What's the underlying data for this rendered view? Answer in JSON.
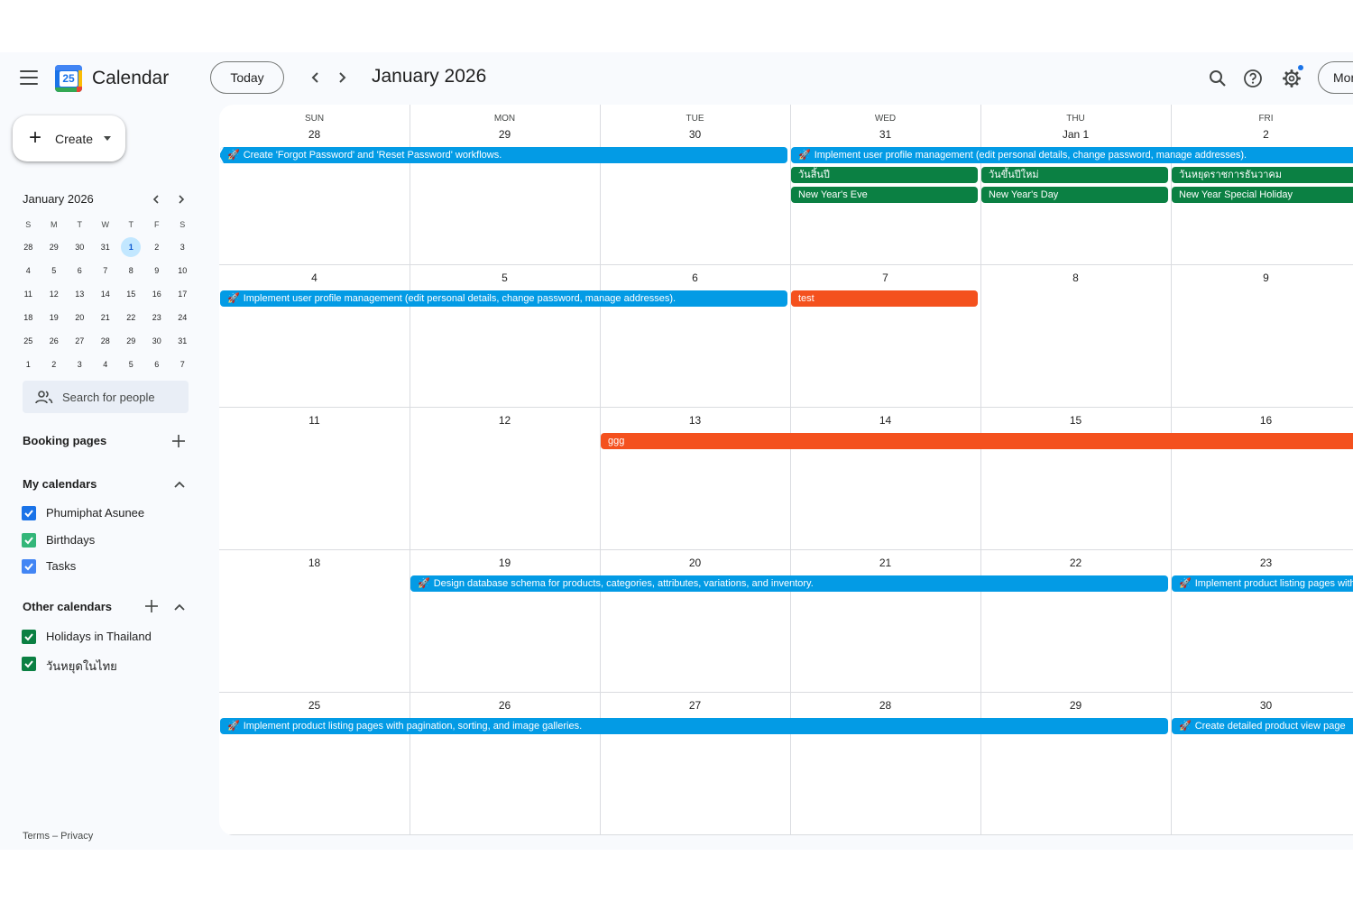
{
  "header": {
    "app_title": "Calendar",
    "logo_day": "25",
    "today_label": "Today",
    "month_title": "January 2026",
    "view_label": "Month",
    "icons": [
      "menu-icon",
      "chevron-left-icon",
      "chevron-right-icon",
      "search-icon",
      "help-icon",
      "settings-icon"
    ]
  },
  "sidebar": {
    "create_label": "Create",
    "mini_calendar": {
      "title": "January 2026",
      "weekdays": [
        "S",
        "M",
        "T",
        "W",
        "T",
        "F",
        "S"
      ],
      "weeks": [
        [
          "28",
          "29",
          "30",
          "31",
          "1",
          "2",
          "3"
        ],
        [
          "4",
          "5",
          "6",
          "7",
          "8",
          "9",
          "10"
        ],
        [
          "11",
          "12",
          "13",
          "14",
          "15",
          "16",
          "17"
        ],
        [
          "18",
          "19",
          "20",
          "21",
          "22",
          "23",
          "24"
        ],
        [
          "25",
          "26",
          "27",
          "28",
          "29",
          "30",
          "31"
        ],
        [
          "1",
          "2",
          "3",
          "4",
          "5",
          "6",
          "7"
        ]
      ],
      "selected_day": "1"
    },
    "search_people_placeholder": "Search for people",
    "booking_pages_title": "Booking pages",
    "my_calendars_title": "My calendars",
    "my_calendars": [
      {
        "label": "Phumiphat Asunee",
        "color": "#1a73e8",
        "checked": true
      },
      {
        "label": "Birthdays",
        "color": "#33b679",
        "checked": true
      },
      {
        "label": "Tasks",
        "color": "#4285f4",
        "checked": true
      }
    ],
    "other_calendars_title": "Other calendars",
    "other_calendars": [
      {
        "label": "Holidays in Thailand",
        "color": "#0b8043",
        "checked": true
      },
      {
        "label": "วันหยุดในไทย",
        "color": "#0b8043",
        "checked": true
      }
    ],
    "footer": "Terms – Privacy"
  },
  "grid": {
    "weekdays": [
      "SUN",
      "MON",
      "TUE",
      "WED",
      "THU",
      "FRI"
    ],
    "weeks": [
      [
        "28",
        "29",
        "30",
        "31",
        "Jan 1",
        "2"
      ],
      [
        "4",
        "5",
        "6",
        "7",
        "8",
        "9"
      ],
      [
        "11",
        "12",
        "13",
        "14",
        "15",
        "16"
      ],
      [
        "18",
        "19",
        "20",
        "21",
        "22",
        "23"
      ],
      [
        "25",
        "26",
        "27",
        "28",
        "29",
        "30"
      ]
    ]
  },
  "events": [
    {
      "title": "Create 'Forgot Password' and 'Reset Password' workflows.",
      "week": 0,
      "start": 0,
      "span": 3,
      "row": 0,
      "color": "blue",
      "emoji": "🚀",
      "cont_left": true
    },
    {
      "title": "Implement user profile management (edit personal details, change password, manage addresses).",
      "week": 0,
      "start": 3,
      "span": 3,
      "row": 0,
      "color": "blue",
      "emoji": "🚀"
    },
    {
      "title": "วันสิ้นปี",
      "week": 0,
      "start": 3,
      "span": 1,
      "row": 1,
      "color": "green"
    },
    {
      "title": "วันขึ้นปีใหม่",
      "week": 0,
      "start": 4,
      "span": 1,
      "row": 1,
      "color": "green"
    },
    {
      "title": "วันหยุดราชการธันวาคม",
      "week": 0,
      "start": 5,
      "span": 1,
      "row": 1,
      "color": "green"
    },
    {
      "title": "New Year's Eve",
      "week": 0,
      "start": 3,
      "span": 1,
      "row": 2,
      "color": "green"
    },
    {
      "title": "New Year's Day",
      "week": 0,
      "start": 4,
      "span": 1,
      "row": 2,
      "color": "green"
    },
    {
      "title": "New Year Special Holiday",
      "week": 0,
      "start": 5,
      "span": 1,
      "row": 2,
      "color": "green"
    },
    {
      "title": "Implement user profile management (edit personal details, change password, manage addresses).",
      "week": 1,
      "start": 0,
      "span": 3,
      "row": 0,
      "color": "blue",
      "emoji": "🚀"
    },
    {
      "title": "test",
      "week": 1,
      "start": 3,
      "span": 1,
      "row": 0,
      "color": "orange"
    },
    {
      "title": "ggg",
      "week": 2,
      "start": 2,
      "span": 4,
      "row": 0,
      "color": "orange"
    },
    {
      "title": "Design database schema for products, categories, attributes, variations, and inventory.",
      "week": 3,
      "start": 1,
      "span": 4,
      "row": 0,
      "color": "blue",
      "emoji": "🚀"
    },
    {
      "title": "Implement product listing pages with pagination, sorting, and image galleries.",
      "week": 3,
      "start": 5,
      "span": 1,
      "row": 0,
      "color": "blue",
      "emoji": "🚀"
    },
    {
      "title": "Implement product listing pages with pagination, sorting, and image galleries.",
      "week": 4,
      "start": 0,
      "span": 5,
      "row": 0,
      "color": "blue",
      "emoji": "🚀"
    },
    {
      "title": "Create detailed product view page",
      "week": 4,
      "start": 5,
      "span": 1,
      "row": 0,
      "color": "blue",
      "emoji": "🚀"
    }
  ]
}
